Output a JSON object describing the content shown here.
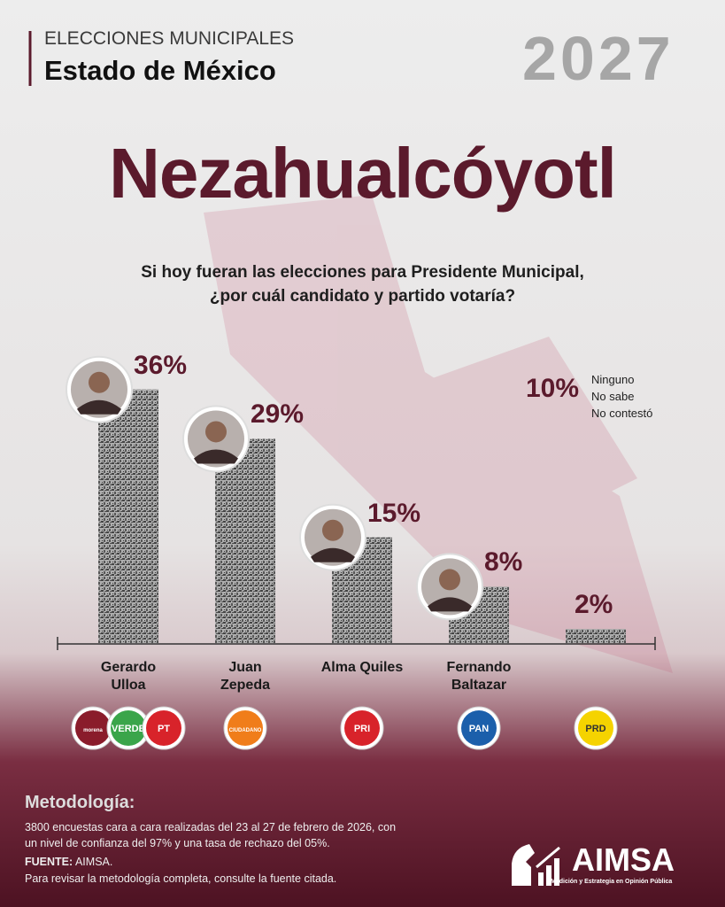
{
  "header": {
    "kicker": "ELECCIONES MUNICIPALES",
    "state": "Estado de México",
    "year": "2027"
  },
  "chart_data": {
    "type": "bar",
    "title": "Nezahualcóyotl",
    "question": [
      "Si hoy fueran las elecciones para Presidente Municipal,",
      "¿por cuál candidato y partido votaría?"
    ],
    "categories": [
      "Gerardo Ulloa",
      "Juan Zepeda",
      "Alma Quiles",
      "Fernando Baltazar",
      null
    ],
    "values": [
      36,
      29,
      15,
      8,
      2
    ],
    "value_labels": [
      "36%",
      "29%",
      "15%",
      "8%",
      "2%"
    ],
    "color": "#5a5a5a",
    "parties": [
      [
        {
          "label": "morena",
          "color": "#8a1c2b"
        },
        {
          "label": "VERDE",
          "color": "#3aa54a"
        },
        {
          "label": "PT",
          "color": "#d8232a"
        }
      ],
      [
        {
          "label": "CIUDADANO",
          "color": "#f07d1a"
        }
      ],
      [
        {
          "label": "PRI",
          "color": "#d8232a"
        }
      ],
      [
        {
          "label": "PAN",
          "color": "#1b5fab"
        }
      ],
      [
        {
          "label": "PRD",
          "color": "#f5d300"
        }
      ]
    ],
    "annotation": {
      "value": 10,
      "label": "10%",
      "lines": [
        "Ninguno",
        "No sabe",
        "No contestó"
      ]
    }
  },
  "footer": {
    "methodology_title": "Metodología:",
    "methodology": [
      "3800 encuestas cara a cara realizadas del 23 al 27 de febrero de 2026, con",
      "un nivel de confianza del 97% y una tasa de rechazo del 05%."
    ],
    "source_label": "FUENTE:",
    "source": "AIMSA.",
    "note": "Para revisar la metodología completa, consulte la fuente citada.",
    "brand": "AIMSA",
    "brand_tagline": "Medición y Estrategia en Opinión Pública"
  }
}
